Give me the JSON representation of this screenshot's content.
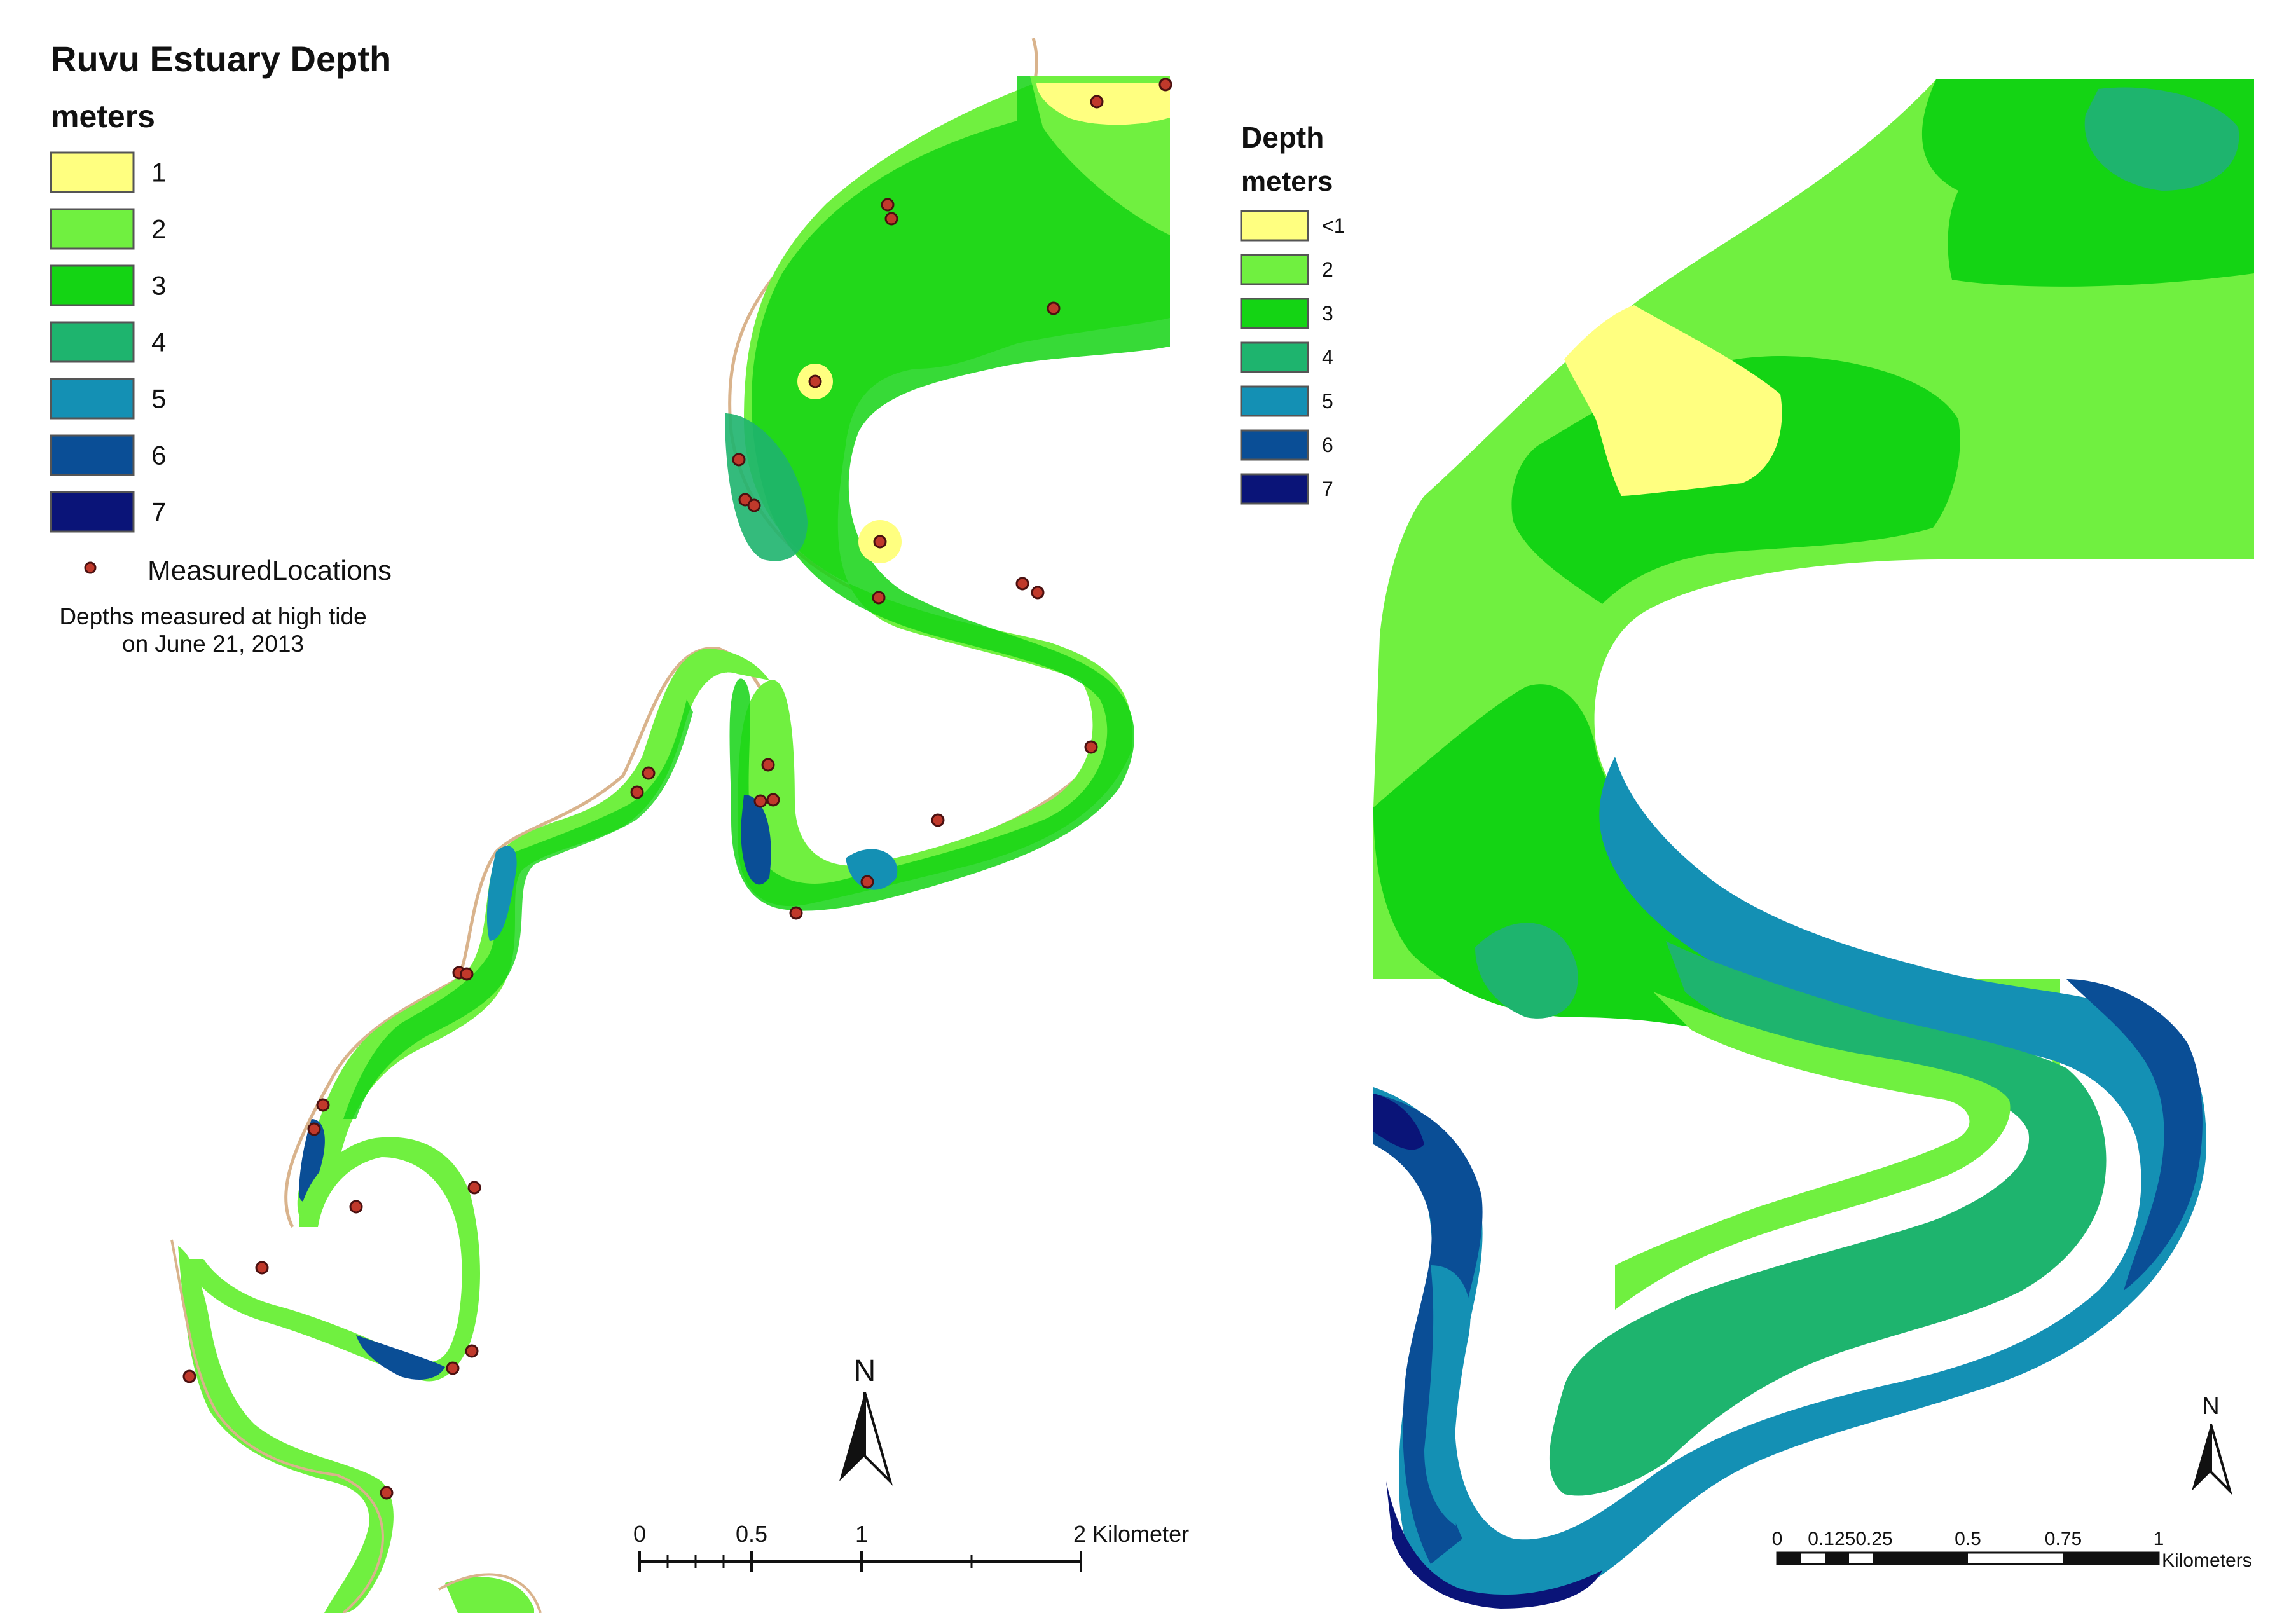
{
  "left_map": {
    "title": "Ruvu Estuary Depth",
    "units": "meters",
    "legend": [
      {
        "label": "1",
        "color": "#FFFF80"
      },
      {
        "label": "2",
        "color": "#70F040"
      },
      {
        "label": "3",
        "color": "#14D414"
      },
      {
        "label": "4",
        "color": "#1EB46E"
      },
      {
        "label": "5",
        "color": "#1490B4"
      },
      {
        "label": "6",
        "color": "#0A4E96"
      },
      {
        "label": "7",
        "color": "#0A1478"
      }
    ],
    "points_label": "MeasuredLocations",
    "note_line1": "Depths measured at high tide",
    "note_line2": "on June 21, 2013",
    "north": "N",
    "scale": {
      "ticks": [
        "0",
        "0.5",
        "1",
        "2 Kilometer"
      ]
    }
  },
  "right_map": {
    "title": "Depth",
    "units": "meters",
    "legend": [
      {
        "label": "<1",
        "color": "#FFFF80"
      },
      {
        "label": "2",
        "color": "#70F040"
      },
      {
        "label": "3",
        "color": "#14D414"
      },
      {
        "label": "4",
        "color": "#1EB46E"
      },
      {
        "label": "5",
        "color": "#1490B4"
      },
      {
        "label": "6",
        "color": "#0A4E96"
      },
      {
        "label": "7",
        "color": "#0A1478"
      }
    ],
    "north": "N",
    "scale": {
      "ticks": [
        "0",
        "0.1250.25",
        "0.5",
        "0.75",
        "1"
      ],
      "unit": "Kilometers"
    }
  },
  "point_color": "#C0392B",
  "bank_color": "#D9B38C"
}
